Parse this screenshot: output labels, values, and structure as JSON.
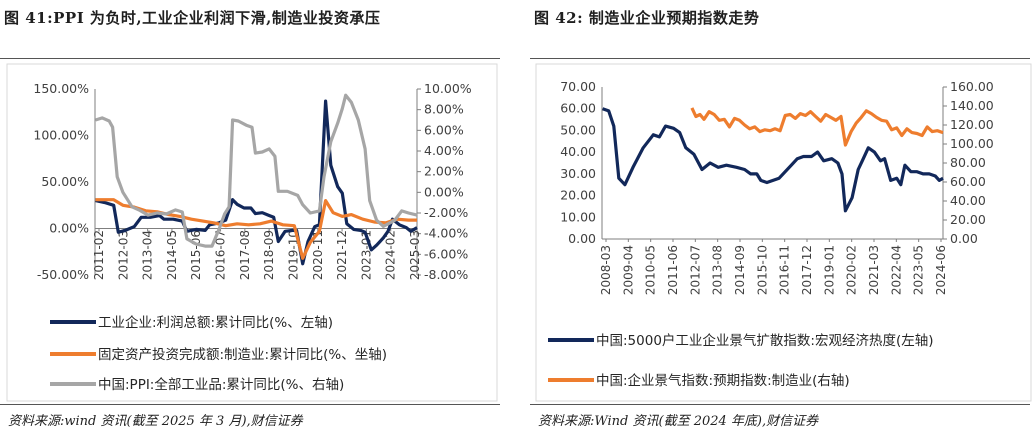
{
  "left": {
    "title": "图 41:PPI 为负时,工业企业利润下滑,制造业投资承压",
    "source": "资料来源:wind 资讯(截至 2025 年 3 月),财信证券"
  },
  "right": {
    "title": "图 42: 制造业企业预期指数走势",
    "source": "资料来源:Wind 资讯(截至 2024 年底),财信证券"
  },
  "chart_data": [
    {
      "type": "line",
      "left_axis": {
        "ticks": [
          "150.00%",
          "100.00%",
          "50.00%",
          "0.00%",
          "-50.00%"
        ],
        "ylim": [
          -50,
          150
        ]
      },
      "right_axis": {
        "ticks": [
          "10.00%",
          "8.00%",
          "6.00%",
          "4.00%",
          "2.00%",
          "0.00%",
          "-2.00%",
          "-4.00%",
          "-6.00%",
          "-8.00%"
        ],
        "ylim": [
          -8,
          10
        ]
      },
      "x_labels": [
        "2011-02",
        "2012-03",
        "2013-04",
        "2014-05",
        "2015-06",
        "2016-07",
        "2017-08",
        "2018-09",
        "2019-10",
        "2020-11",
        "2021-12",
        "2023-01",
        "2024-02",
        "2025-03"
      ],
      "x_range": [
        2011.08,
        2025.17
      ],
      "series": [
        {
          "name": "工业企业:利润总额:累计同比(%、左轴)",
          "axis": "left",
          "color": "#12285a",
          "points": [
            [
              2011.1,
              30
            ],
            [
              2011.5,
              28
            ],
            [
              2011.9,
              25
            ],
            [
              2012.1,
              -4
            ],
            [
              2012.4,
              -2
            ],
            [
              2012.8,
              2
            ],
            [
              2013.1,
              12
            ],
            [
              2013.5,
              12
            ],
            [
              2013.9,
              14
            ],
            [
              2014.1,
              10
            ],
            [
              2014.5,
              10
            ],
            [
              2014.9,
              8
            ],
            [
              2015.1,
              -3
            ],
            [
              2015.5,
              -1
            ],
            [
              2015.9,
              -2
            ],
            [
              2016.1,
              4
            ],
            [
              2016.5,
              6
            ],
            [
              2016.8,
              9
            ],
            [
              2017.1,
              31
            ],
            [
              2017.3,
              26
            ],
            [
              2017.6,
              22
            ],
            [
              2017.9,
              22
            ],
            [
              2018.1,
              16
            ],
            [
              2018.4,
              17
            ],
            [
              2018.7,
              14
            ],
            [
              2018.9,
              12
            ],
            [
              2019.1,
              -14
            ],
            [
              2019.4,
              -3
            ],
            [
              2019.7,
              -2
            ],
            [
              2019.9,
              -2
            ],
            [
              2020.17,
              -38
            ],
            [
              2020.4,
              -14
            ],
            [
              2020.7,
              2
            ],
            [
              2020.9,
              4
            ],
            [
              2021.17,
              137
            ],
            [
              2021.4,
              68
            ],
            [
              2021.7,
              45
            ],
            [
              2021.9,
              38
            ],
            [
              2022.1,
              5
            ],
            [
              2022.4,
              -1
            ],
            [
              2022.7,
              -2
            ],
            [
              2022.9,
              -4
            ],
            [
              2023.17,
              -23
            ],
            [
              2023.4,
              -18
            ],
            [
              2023.7,
              -10
            ],
            [
              2023.9,
              -3
            ],
            [
              2024.1,
              10
            ],
            [
              2024.4,
              4
            ],
            [
              2024.7,
              1
            ],
            [
              2024.9,
              -3
            ],
            [
              2025.17,
              1
            ]
          ]
        },
        {
          "name": "固定资产投资完成额:制造业:累计同比(%、坐轴)",
          "axis": "left",
          "color": "#ee7d2e",
          "points": [
            [
              2011.1,
              31
            ],
            [
              2011.5,
              31
            ],
            [
              2011.9,
              31
            ],
            [
              2012.3,
              25
            ],
            [
              2012.8,
              23
            ],
            [
              2013.3,
              19
            ],
            [
              2013.8,
              18
            ],
            [
              2014.3,
              15
            ],
            [
              2014.8,
              13
            ],
            [
              2015.3,
              10
            ],
            [
              2015.8,
              8
            ],
            [
              2016.3,
              6
            ],
            [
              2016.8,
              3
            ],
            [
              2017.3,
              5
            ],
            [
              2017.8,
              4
            ],
            [
              2018.3,
              5
            ],
            [
              2018.8,
              8
            ],
            [
              2019.3,
              4
            ],
            [
              2019.8,
              3
            ],
            [
              2020.17,
              -32
            ],
            [
              2020.5,
              -15
            ],
            [
              2020.9,
              -3
            ],
            [
              2021.17,
              30
            ],
            [
              2021.5,
              17
            ],
            [
              2021.9,
              13
            ],
            [
              2022.3,
              15
            ],
            [
              2022.8,
              10
            ],
            [
              2023.3,
              7
            ],
            [
              2023.8,
              6
            ],
            [
              2024.3,
              10
            ],
            [
              2024.8,
              9
            ],
            [
              2025.17,
              9
            ]
          ]
        },
        {
          "name": "中国:PPI:全部工业品:累计同比(%、右轴)",
          "axis": "right",
          "color": "#a6a6a6",
          "points": [
            [
              2011.1,
              7.0
            ],
            [
              2011.4,
              7.2
            ],
            [
              2011.7,
              6.9
            ],
            [
              2011.85,
              6.3
            ],
            [
              2012.05,
              1.5
            ],
            [
              2012.3,
              0
            ],
            [
              2012.7,
              -1.4
            ],
            [
              2013.0,
              -1.7
            ],
            [
              2013.4,
              -2.2
            ],
            [
              2013.8,
              -2.0
            ],
            [
              2014.2,
              -2.1
            ],
            [
              2014.6,
              -1.7
            ],
            [
              2014.9,
              -1.9
            ],
            [
              2015.1,
              -4.5
            ],
            [
              2015.5,
              -5.0
            ],
            [
              2015.9,
              -5.2
            ],
            [
              2016.2,
              -5.2
            ],
            [
              2016.5,
              -3.6
            ],
            [
              2016.75,
              -2.1
            ],
            [
              2016.95,
              -1.4
            ],
            [
              2017.1,
              7.0
            ],
            [
              2017.35,
              6.9
            ],
            [
              2017.7,
              6.5
            ],
            [
              2017.95,
              6.3
            ],
            [
              2018.1,
              3.8
            ],
            [
              2018.4,
              3.9
            ],
            [
              2018.7,
              4.2
            ],
            [
              2018.95,
              3.5
            ],
            [
              2019.1,
              0.1
            ],
            [
              2019.5,
              0.1
            ],
            [
              2019.95,
              -0.3
            ],
            [
              2020.17,
              -1.2
            ],
            [
              2020.5,
              -2.0
            ],
            [
              2020.9,
              -1.8
            ],
            [
              2021.1,
              1.5
            ],
            [
              2021.4,
              4.9
            ],
            [
              2021.7,
              6.7
            ],
            [
              2021.9,
              8.1
            ],
            [
              2022.05,
              9.4
            ],
            [
              2022.3,
              8.7
            ],
            [
              2022.6,
              7.0
            ],
            [
              2022.9,
              4.2
            ],
            [
              2023.1,
              -0.8
            ],
            [
              2023.4,
              -2.7
            ],
            [
              2023.7,
              -3.3
            ],
            [
              2023.95,
              -3.0
            ],
            [
              2024.2,
              -2.7
            ],
            [
              2024.5,
              -1.8
            ],
            [
              2024.8,
              -2.0
            ],
            [
              2025.17,
              -2.2
            ]
          ]
        }
      ],
      "legend": [
        "工业企业:利润总额:累计同比(%、左轴)",
        "固定资产投资完成额:制造业:累计同比(%、坐轴)",
        "中国:PPI:全部工业品:累计同比(%、右轴)"
      ]
    },
    {
      "type": "line",
      "left_axis": {
        "ticks": [
          "70.00",
          "60.00",
          "50.00",
          "40.00",
          "30.00",
          "20.00",
          "10.00",
          "0.00"
        ],
        "ylim": [
          0,
          70
        ]
      },
      "right_axis": {
        "ticks": [
          "160.00",
          "140.00",
          "120.00",
          "100.00",
          "80.00",
          "60.00",
          "40.00",
          "20.00",
          "0.00"
        ],
        "ylim": [
          0,
          160
        ]
      },
      "x_labels": [
        "2008-03",
        "2009-04",
        "2010-05",
        "2011-06",
        "2012-07",
        "2013-08",
        "2014-09",
        "2015-10",
        "2016-11",
        "2017-12",
        "2019-01",
        "2020-02",
        "2021-03",
        "2022-04",
        "2023-05",
        "2024-06"
      ],
      "x_range": [
        2008.17,
        2024.98
      ],
      "series": [
        {
          "name": "中国:5000户工业企业景气扩散指数:宏观经济热度(左轴)",
          "axis": "left",
          "color": "#12285a",
          "points": [
            [
              2008.2,
              60
            ],
            [
              2008.5,
              59
            ],
            [
              2008.75,
              52
            ],
            [
              2009.0,
              28
            ],
            [
              2009.3,
              25
            ],
            [
              2009.7,
              33
            ],
            [
              2010.2,
              42
            ],
            [
              2010.7,
              48
            ],
            [
              2011.0,
              47
            ],
            [
              2011.3,
              52
            ],
            [
              2011.7,
              51
            ],
            [
              2012.0,
              49
            ],
            [
              2012.3,
              42
            ],
            [
              2012.7,
              39
            ],
            [
              2013.1,
              32
            ],
            [
              2013.5,
              35
            ],
            [
              2013.9,
              33
            ],
            [
              2014.3,
              34
            ],
            [
              2014.8,
              33
            ],
            [
              2015.2,
              32
            ],
            [
              2015.5,
              30
            ],
            [
              2015.8,
              30
            ],
            [
              2016.0,
              27
            ],
            [
              2016.3,
              26
            ],
            [
              2016.6,
              27
            ],
            [
              2016.9,
              28
            ],
            [
              2017.2,
              31
            ],
            [
              2017.5,
              34
            ],
            [
              2017.8,
              37
            ],
            [
              2018.1,
              38
            ],
            [
              2018.5,
              38
            ],
            [
              2018.8,
              40
            ],
            [
              2019.1,
              36
            ],
            [
              2019.5,
              37
            ],
            [
              2019.8,
              35
            ],
            [
              2020.0,
              30
            ],
            [
              2020.17,
              13
            ],
            [
              2020.5,
              19
            ],
            [
              2020.8,
              32
            ],
            [
              2021.0,
              36
            ],
            [
              2021.3,
              42
            ],
            [
              2021.6,
              40
            ],
            [
              2021.9,
              36
            ],
            [
              2022.1,
              37
            ],
            [
              2022.4,
              27
            ],
            [
              2022.7,
              28
            ],
            [
              2022.9,
              25
            ],
            [
              2023.1,
              34
            ],
            [
              2023.4,
              31
            ],
            [
              2023.7,
              31
            ],
            [
              2024.0,
              30
            ],
            [
              2024.3,
              30
            ],
            [
              2024.6,
              29
            ],
            [
              2024.8,
              27
            ],
            [
              2024.98,
              28
            ]
          ]
        },
        {
          "name": "中国:企业景气指数:预期指数:制造业(右轴)",
          "axis": "right",
          "color": "#ee7d2e",
          "points": [
            [
              2012.6,
              138
            ],
            [
              2012.8,
              129
            ],
            [
              2013.0,
              131
            ],
            [
              2013.2,
              126
            ],
            [
              2013.45,
              134
            ],
            [
              2013.7,
              131
            ],
            [
              2013.95,
              125
            ],
            [
              2014.2,
              126
            ],
            [
              2014.45,
              118
            ],
            [
              2014.7,
              127
            ],
            [
              2014.95,
              125
            ],
            [
              2015.2,
              120
            ],
            [
              2015.45,
              116
            ],
            [
              2015.7,
              118
            ],
            [
              2015.95,
              113
            ],
            [
              2016.2,
              115
            ],
            [
              2016.45,
              114
            ],
            [
              2016.7,
              116
            ],
            [
              2016.95,
              114
            ],
            [
              2017.2,
              130
            ],
            [
              2017.45,
              131
            ],
            [
              2017.7,
              127
            ],
            [
              2017.95,
              132
            ],
            [
              2018.2,
              130
            ],
            [
              2018.45,
              134
            ],
            [
              2018.7,
              129
            ],
            [
              2018.95,
              124
            ],
            [
              2019.2,
              131
            ],
            [
              2019.45,
              128
            ],
            [
              2019.7,
              125
            ],
            [
              2019.95,
              129
            ],
            [
              2020.17,
              99
            ],
            [
              2020.45,
              113
            ],
            [
              2020.7,
              122
            ],
            [
              2020.95,
              128
            ],
            [
              2021.2,
              135
            ],
            [
              2021.45,
              132
            ],
            [
              2021.7,
              128
            ],
            [
              2021.95,
              125
            ],
            [
              2022.2,
              124
            ],
            [
              2022.45,
              115
            ],
            [
              2022.7,
              117
            ],
            [
              2022.95,
              109
            ],
            [
              2023.2,
              116
            ],
            [
              2023.45,
              112
            ],
            [
              2023.7,
              111
            ],
            [
              2023.95,
              109
            ],
            [
              2024.2,
              118
            ],
            [
              2024.45,
              113
            ],
            [
              2024.7,
              114
            ],
            [
              2024.98,
              112
            ]
          ]
        }
      ],
      "legend": [
        "中国:5000户工业企业景气扩散指数:宏观经济热度(左轴)",
        "中国:企业景气指数:预期指数:制造业(右轴)"
      ]
    }
  ]
}
